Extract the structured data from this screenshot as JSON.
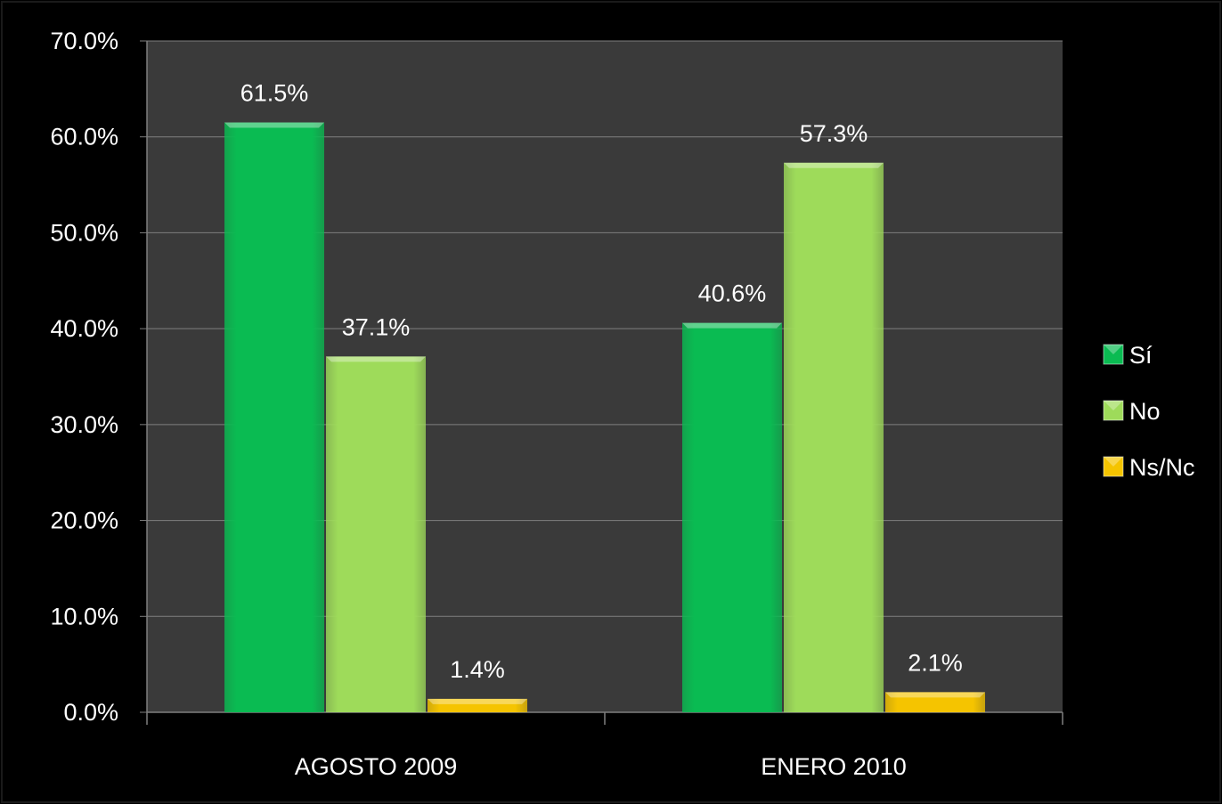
{
  "chart_data": {
    "type": "bar",
    "categories": [
      "AGOSTO 2009",
      "ENERO 2010"
    ],
    "series": [
      {
        "name": "Sí",
        "values": [
          61.5,
          40.6
        ],
        "labels": [
          "61.5%",
          "40.6%"
        ],
        "color": "#0ABB52"
      },
      {
        "name": "No",
        "values": [
          37.1,
          57.3
        ],
        "labels": [
          "37.1%",
          "57.3%"
        ],
        "color": "#9EDB5A"
      },
      {
        "name": "Ns/Nc",
        "values": [
          1.4,
          2.1
        ],
        "labels": [
          "1.4%",
          "2.1%"
        ],
        "color": "#F5C400"
      }
    ],
    "ylim": [
      0,
      70
    ],
    "yticks": [
      "0.0%",
      "10.0%",
      "20.0%",
      "30.0%",
      "40.0%",
      "50.0%",
      "60.0%",
      "70.0%"
    ],
    "title": "",
    "xlabel": "",
    "ylabel": "",
    "grid": true,
    "legend_position": "right",
    "colors": {
      "page_background": "#000000",
      "plot_background": "#3A3A3A",
      "gridline": "#7F7F7F",
      "text": "#FFFFFF"
    }
  }
}
